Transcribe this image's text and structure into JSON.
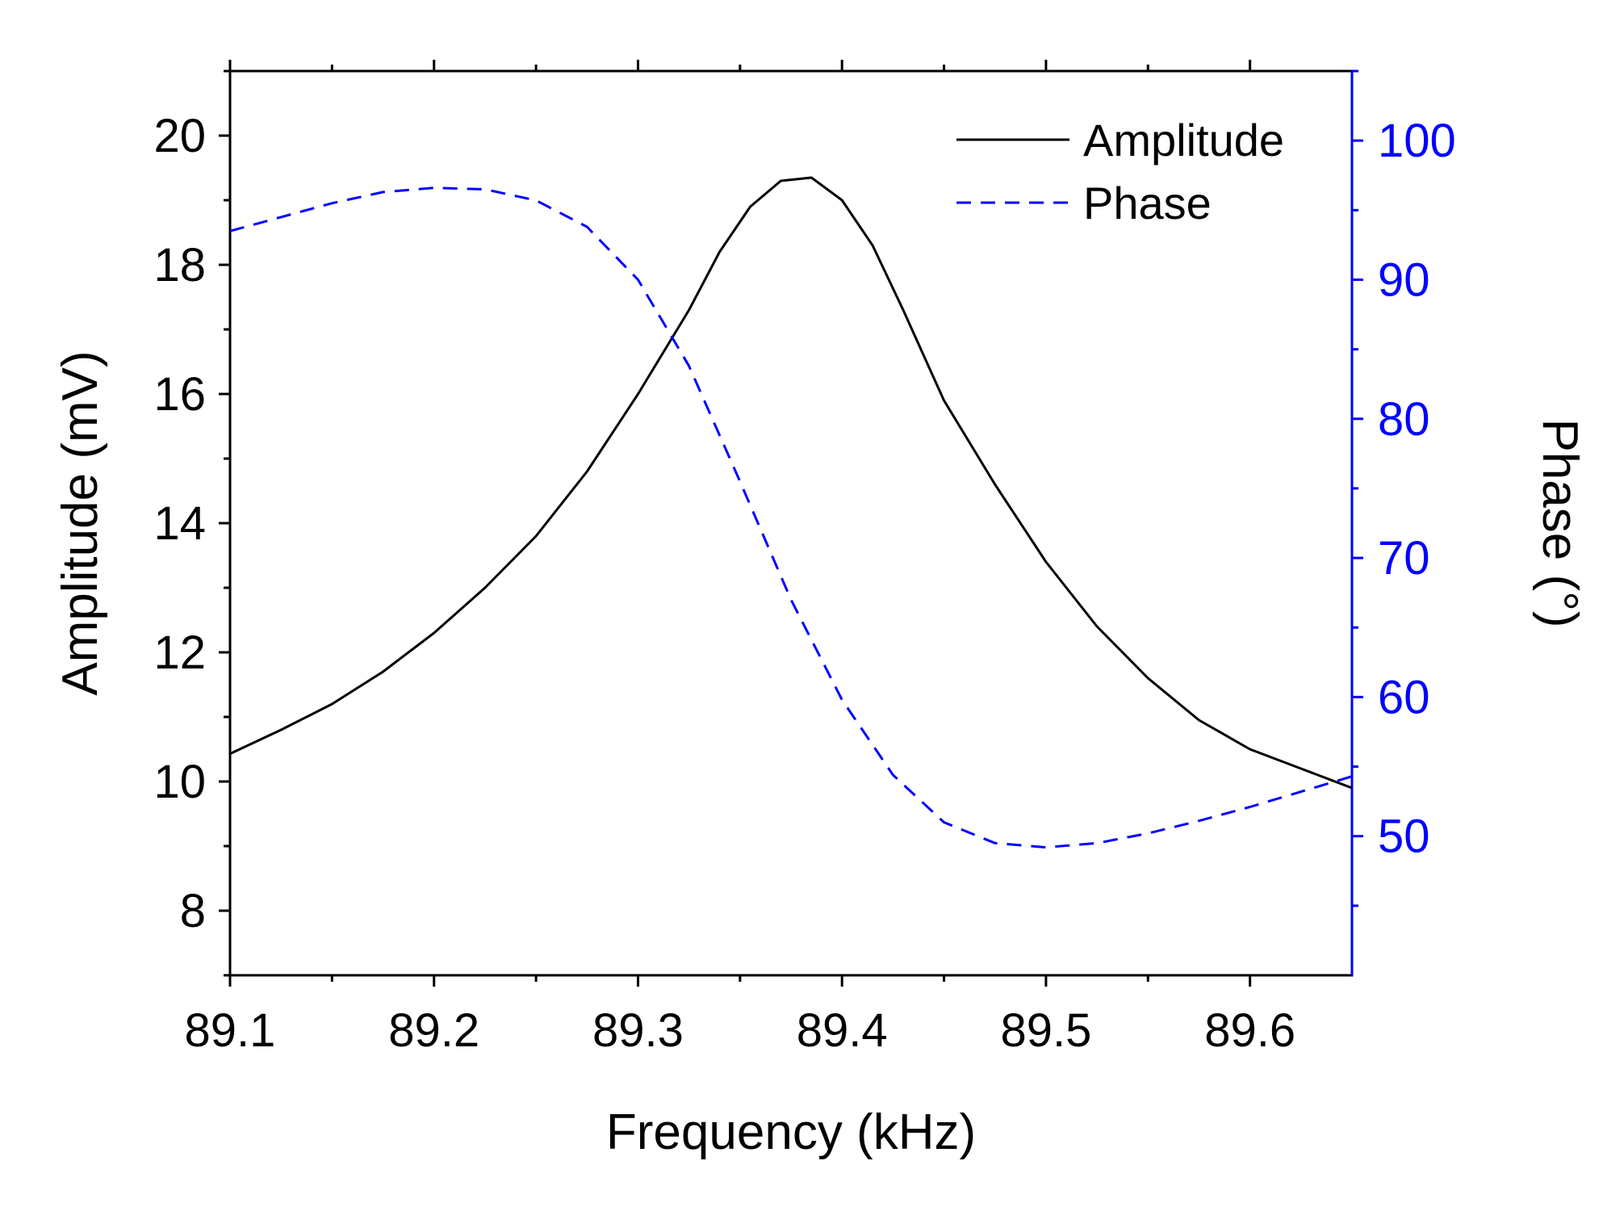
{
  "chart_data": {
    "type": "line",
    "xlabel": "Frequency (kHz)",
    "ylabel_left": "Amplitude (mV)",
    "ylabel_right": "Phase (°)",
    "xlim": [
      89.1,
      89.65
    ],
    "ylim_left": [
      7,
      21
    ],
    "ylim_right": [
      40,
      105
    ],
    "x_ticks": [
      "89.1",
      "89.2",
      "89.3",
      "89.4",
      "89.5",
      "89.6"
    ],
    "y_left_ticks": [
      "8",
      "10",
      "12",
      "14",
      "16",
      "18",
      "20"
    ],
    "y_right_ticks": [
      "50",
      "60",
      "70",
      "80",
      "90",
      "100"
    ],
    "right_axis_color": "#0000ff",
    "legend_position": "top-right",
    "grid": false,
    "series": [
      {
        "name": "Amplitude",
        "axis": "left",
        "color": "#000000",
        "style": "solid",
        "x": [
          89.1,
          89.125,
          89.15,
          89.175,
          89.2,
          89.225,
          89.25,
          89.275,
          89.3,
          89.325,
          89.34,
          89.355,
          89.37,
          89.385,
          89.4,
          89.415,
          89.43,
          89.45,
          89.475,
          89.5,
          89.525,
          89.55,
          89.575,
          89.6,
          89.625,
          89.65
        ],
        "values": [
          10.43,
          10.8,
          11.2,
          11.7,
          12.3,
          13.0,
          13.8,
          14.8,
          16.0,
          17.3,
          18.2,
          18.9,
          19.3,
          19.35,
          19.0,
          18.3,
          17.3,
          15.9,
          14.6,
          13.4,
          12.4,
          11.6,
          10.95,
          10.5,
          10.2,
          9.9
        ]
      },
      {
        "name": "Phase",
        "axis": "right",
        "color": "#0000ff",
        "style": "dashed",
        "x": [
          89.1,
          89.125,
          89.15,
          89.175,
          89.2,
          89.225,
          89.25,
          89.275,
          89.3,
          89.325,
          89.35,
          89.375,
          89.4,
          89.425,
          89.45,
          89.475,
          89.5,
          89.525,
          89.55,
          89.575,
          89.6,
          89.625,
          89.65
        ],
        "values": [
          93.5,
          94.5,
          95.5,
          96.3,
          96.6,
          96.5,
          95.7,
          93.8,
          90.0,
          83.8,
          75.5,
          67.0,
          59.8,
          54.4,
          51.0,
          49.5,
          49.2,
          49.5,
          50.2,
          51.1,
          52.1,
          53.2,
          54.3
        ]
      }
    ]
  }
}
